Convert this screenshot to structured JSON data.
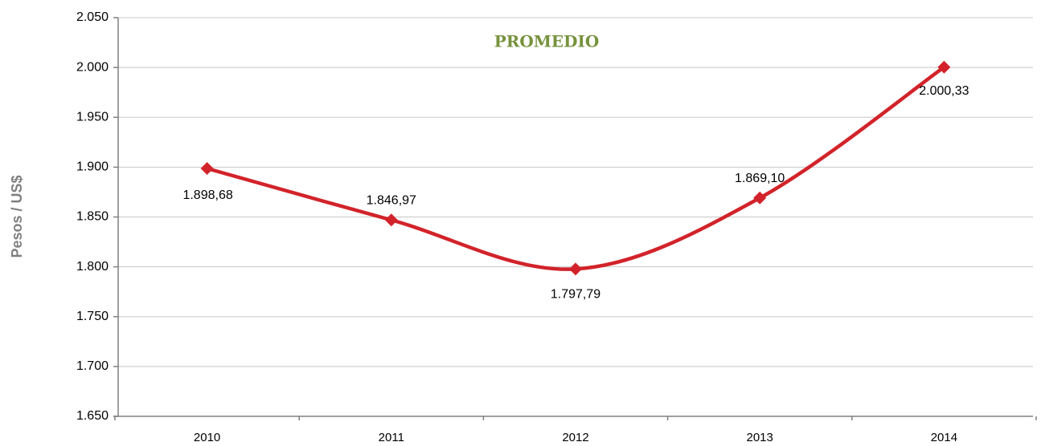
{
  "chart_data": {
    "type": "line",
    "title": "PROMEDIO",
    "y_label": "Pesos / US$",
    "categories": [
      "2010",
      "2011",
      "2012",
      "2013",
      "2014"
    ],
    "values": [
      1898.68,
      1846.97,
      1797.79,
      1869.1,
      2000.33
    ],
    "value_labels": [
      "1.898,68",
      "1.846,97",
      "1.797,79",
      "1.869,10",
      "2.000,33"
    ],
    "color": "#d2232a",
    "title_color": "#76923c",
    "ylim": [
      1650,
      2050
    ],
    "yticks": [
      {
        "value": 1650,
        "label": "1.650"
      },
      {
        "value": 1700,
        "label": "1.700"
      },
      {
        "value": 1750,
        "label": "1.750"
      },
      {
        "value": 1800,
        "label": "1.800"
      },
      {
        "value": 1850,
        "label": "1.850"
      },
      {
        "value": 1900,
        "label": "1.900"
      },
      {
        "value": 1950,
        "label": "1.950"
      },
      {
        "value": 2000,
        "label": "2.000"
      },
      {
        "value": 2050,
        "label": "2.050"
      }
    ],
    "grid": true
  }
}
